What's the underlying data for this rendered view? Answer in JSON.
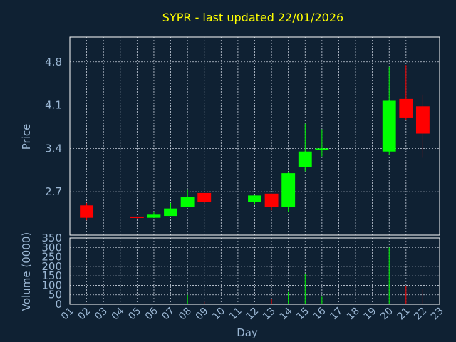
{
  "chart_data": {
    "type": "candlestick",
    "title": "SYPR - last updated 22/01/2026",
    "xlabel": "Day",
    "ylabel_price": "Price",
    "ylabel_volume": "Volume (0000)",
    "x_ticks": [
      "01",
      "02",
      "03",
      "04",
      "05",
      "06",
      "07",
      "08",
      "09",
      "10",
      "11",
      "12",
      "13",
      "14",
      "15",
      "16",
      "17",
      "18",
      "19",
      "20",
      "21",
      "22",
      "23"
    ],
    "price_ticks": [
      2.7,
      3.4,
      4.1,
      4.8
    ],
    "price_ylim": [
      2.0,
      5.2
    ],
    "volume_ticks": [
      0,
      50,
      100,
      150,
      200,
      250,
      300,
      350
    ],
    "volume_ylim": [
      0,
      350
    ],
    "colors": {
      "up": "#00ff00",
      "down": "#ff0000",
      "background": "#0f2133",
      "title": "#ffff00",
      "axis_text": "#9bb7d4"
    },
    "candles": [
      {
        "day": 2,
        "open": 2.48,
        "high": 2.52,
        "low": 2.24,
        "close": 2.28,
        "volume": 4
      },
      {
        "day": 5,
        "open": 2.3,
        "high": 2.3,
        "low": 2.27,
        "close": 2.28,
        "volume": 2
      },
      {
        "day": 6,
        "open": 2.28,
        "high": 2.37,
        "low": 2.28,
        "close": 2.33,
        "volume": 2
      },
      {
        "day": 7,
        "open": 2.31,
        "high": 2.52,
        "low": 2.31,
        "close": 2.43,
        "volume": 3
      },
      {
        "day": 8,
        "open": 2.46,
        "high": 2.74,
        "low": 2.46,
        "close": 2.62,
        "volume": 50
      },
      {
        "day": 9,
        "open": 2.68,
        "high": 2.68,
        "low": 2.51,
        "close": 2.53,
        "volume": 12
      },
      {
        "day": 12,
        "open": 2.53,
        "high": 2.65,
        "low": 2.49,
        "close": 2.64,
        "volume": 3
      },
      {
        "day": 13,
        "open": 2.67,
        "high": 2.67,
        "low": 2.4,
        "close": 2.46,
        "volume": 28
      },
      {
        "day": 14,
        "open": 2.46,
        "high": 3.02,
        "low": 2.38,
        "close": 3.0,
        "volume": 65
      },
      {
        "day": 15,
        "open": 3.1,
        "high": 3.8,
        "low": 3.03,
        "close": 3.35,
        "volume": 160
      },
      {
        "day": 16,
        "open": 3.38,
        "high": 3.71,
        "low": 3.27,
        "close": 3.4,
        "volume": 40
      },
      {
        "day": 20,
        "open": 3.35,
        "high": 4.72,
        "low": 3.3,
        "close": 4.17,
        "volume": 300
      },
      {
        "day": 21,
        "open": 4.2,
        "high": 4.75,
        "low": 3.86,
        "close": 3.9,
        "volume": 95
      },
      {
        "day": 22,
        "open": 4.08,
        "high": 4.27,
        "low": 3.25,
        "close": 3.64,
        "volume": 80
      }
    ]
  }
}
